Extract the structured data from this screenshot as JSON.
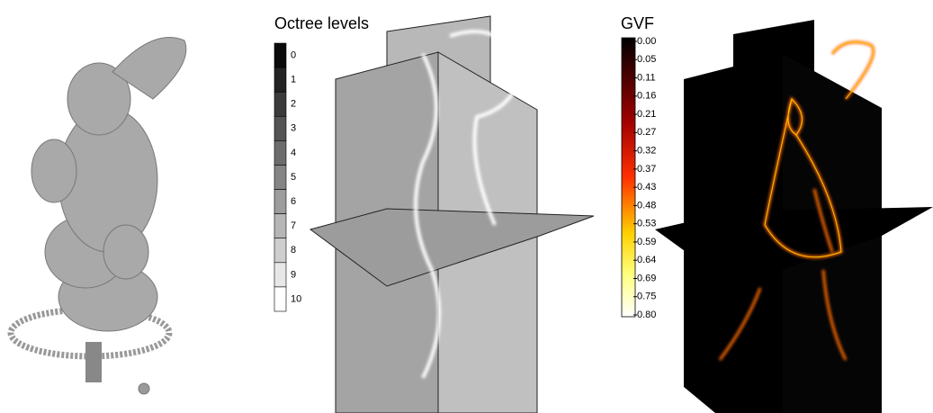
{
  "octree_colorbar": {
    "title": "Octree levels",
    "ticks": [
      "0",
      "1",
      "2",
      "3",
      "4",
      "5",
      "6",
      "7",
      "8",
      "9",
      "10"
    ]
  },
  "gvf_colorbar": {
    "title": "GVF",
    "ticks": [
      "0.00",
      "0.05",
      "0.11",
      "0.16",
      "0.21",
      "0.27",
      "0.32",
      "0.37",
      "0.43",
      "0.48",
      "0.53",
      "0.59",
      "0.64",
      "0.69",
      "0.75",
      "0.80"
    ]
  }
}
